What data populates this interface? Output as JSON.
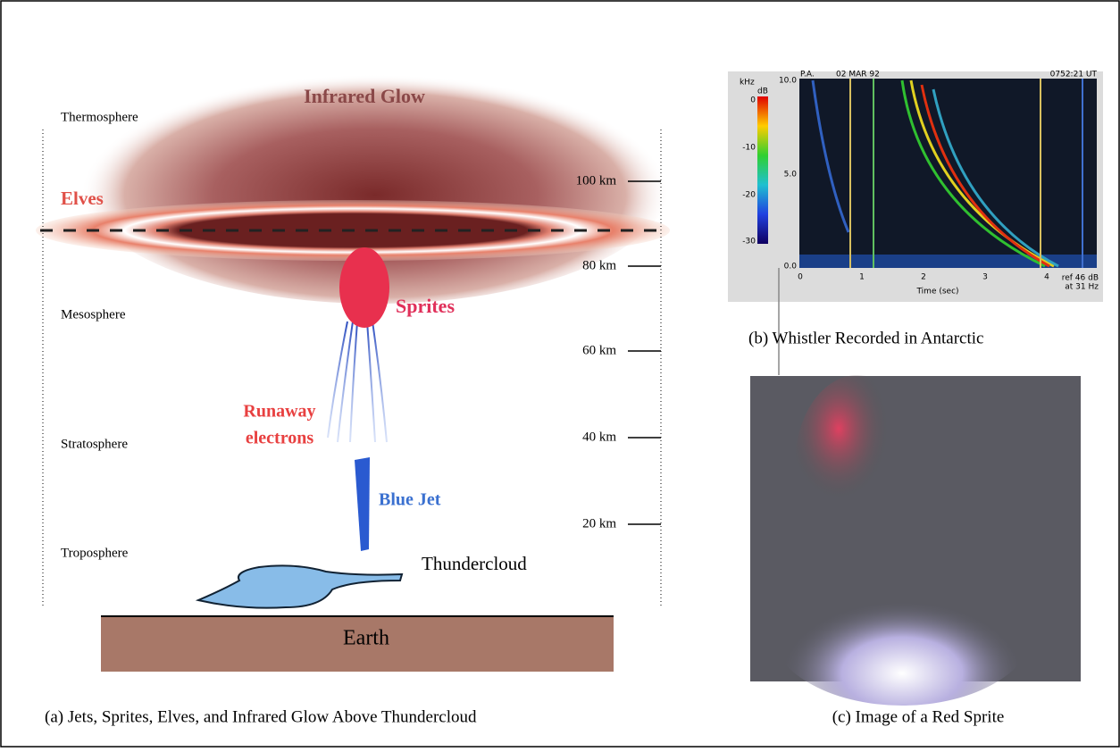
{
  "panel_a": {
    "glow_label": "Infrared Glow",
    "elves_label": "Elves",
    "sprites_label": "Sprites",
    "runaway_label": [
      "Runaway",
      "electrons"
    ],
    "jet_label": "Blue Jet",
    "cloud_label": "Thundercloud",
    "earth_label": "Earth",
    "layers": [
      "Thermosphere",
      "Mesosphere",
      "Stratosphere",
      "Troposphere"
    ],
    "altitudes": [
      "100 km",
      "80 km",
      "60 km",
      "40 km",
      "20 km"
    ],
    "caption": "(a) Jets, Sprites, Elves, and Infrared Glow Above Thundercloud"
  },
  "panel_b": {
    "unit": "kHz",
    "header": [
      "P.A.",
      "02 MAR 92",
      "0752:21 UT"
    ],
    "yticks": [
      "10.0",
      "5.0",
      "0.0"
    ],
    "colorbar_unit": "dB",
    "colorbar_ticks": [
      "0",
      "-10",
      "-20",
      "-30"
    ],
    "xticks": [
      "0",
      "1",
      "2",
      "3",
      "4"
    ],
    "xlabel": "Time (sec)",
    "ref_note": [
      "ref 46 dB",
      "at 31 Hz"
    ],
    "caption": "(b) Whistler Recorded in Antarctic"
  },
  "panel_c": {
    "caption": "(c) Image of a Red Sprite"
  }
}
